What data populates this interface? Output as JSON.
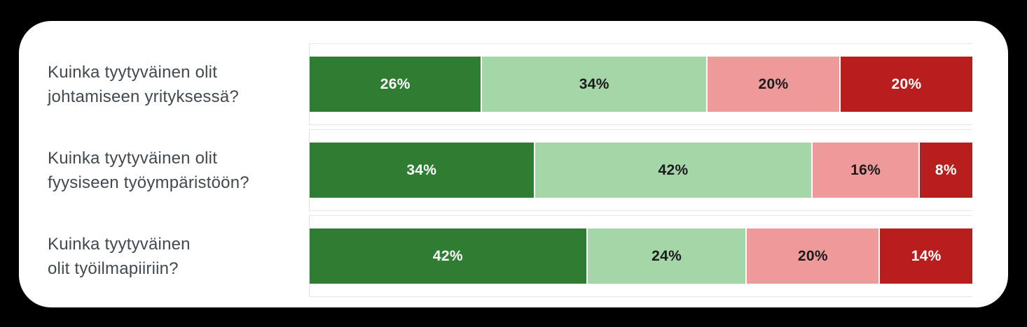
{
  "page": {
    "background_color": "#000000",
    "card_color": "#ffffff"
  },
  "chart_data": {
    "type": "bar",
    "orientation": "horizontal",
    "stacked": true,
    "value_unit": "%",
    "xlim": [
      0,
      100
    ],
    "legend": "none",
    "grid": "row top/bottom separator lines + left axis line",
    "axis_color": "#e7e7e7",
    "category_text_color": "#414a50",
    "categories": [
      "Kuinka tyytyväinen olit johtamiseen yrityksessä?",
      "Kuinka tyytyväinen olit fyysiseen työympäristöön?",
      "Kuinka tyytyväinen olit työilmapiiriin?"
    ],
    "category_label_lines": [
      [
        "Kuinka tyytyväinen olit",
        "johtamiseen yrityksessä?"
      ],
      [
        "Kuinka tyytyväinen olit",
        "fyysiseen työympäristöön?"
      ],
      [
        "Kuinka tyytyväinen",
        "olit työilmapiiriin?"
      ]
    ],
    "series": [
      {
        "name": "dark-green-segment",
        "color": "#2f7d32",
        "label_color": "#ffffff",
        "values": [
          26,
          34,
          42
        ]
      },
      {
        "name": "light-green-segment",
        "color": "#a5d6a7",
        "label_color": "#1b1b1b",
        "values": [
          34,
          42,
          24
        ]
      },
      {
        "name": "pink-segment",
        "color": "#ef9a9a",
        "label_color": "#1b1b1b",
        "values": [
          20,
          16,
          20
        ]
      },
      {
        "name": "dark-red-segment",
        "color": "#b91e1e",
        "label_color": "#ffffff",
        "values": [
          20,
          8,
          14
        ]
      }
    ],
    "value_labels": [
      [
        "26%",
        "34%",
        "20%",
        "20%"
      ],
      [
        "34%",
        "42%",
        "16%",
        "8%"
      ],
      [
        "42%",
        "24%",
        "20%",
        "14%"
      ]
    ]
  }
}
